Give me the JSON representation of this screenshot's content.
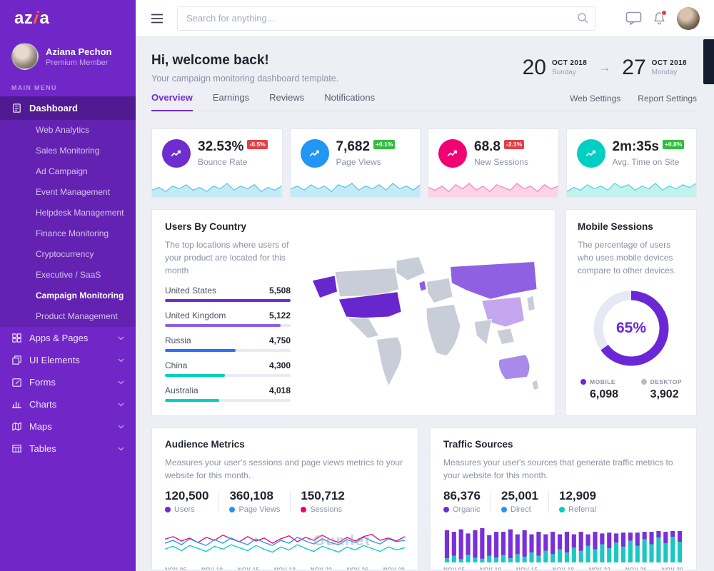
{
  "colors": {
    "purple": "#6f2dcf",
    "blue": "#2196f3",
    "pink": "#f10075",
    "teal": "#00cfc4",
    "badge_red": "#e23f49",
    "badge_green": "#2fbf3f"
  },
  "sidebar": {
    "logo_prefix": "az",
    "logo_accent": "i",
    "logo_suffix": "a",
    "user": {
      "name": "Aziana Pechon",
      "role": "Premium Member"
    },
    "section_label": "MAIN MENU",
    "dashboard_label": "Dashboard",
    "dashboard_sub": [
      "Web Analytics",
      "Sales Monitoring",
      "Ad Campaign",
      "Event Management",
      "Helpdesk Management",
      "Finance Monitoring",
      "Cryptocurrency",
      "Executive / SaaS",
      "Campaign Monitoring",
      "Product Management"
    ],
    "dashboard_sub_active": "Campaign Monitoring",
    "menu_items": [
      "Apps & Pages",
      "UI Elements",
      "Forms",
      "Charts",
      "Maps",
      "Tables"
    ]
  },
  "topbar": {
    "search_placeholder": "Search for anything..."
  },
  "header": {
    "title": "Hi, welcome back!",
    "subtitle": "Your campaign monitoring dashboard template.",
    "date_from": {
      "day": "20",
      "month": "OCT 2018",
      "weekday": "Sunday"
    },
    "date_to": {
      "day": "27",
      "month": "OCT 2018",
      "weekday": "Monday"
    },
    "links": [
      "Web Settings",
      "Report Settings"
    ]
  },
  "tabs": {
    "items": [
      "Overview",
      "Earnings",
      "Reviews",
      "Notifications"
    ],
    "active": "Overview"
  },
  "stat_cards": [
    {
      "label": "Bounce Rate",
      "value": "32.53%",
      "badge": "-0.5%",
      "badge_color": "#e23f49",
      "color": "#6f2dcf",
      "spark_color": "#58c3e8",
      "spark": [
        4,
        6,
        3,
        7,
        5,
        8,
        4,
        6,
        3,
        7,
        5,
        9,
        4,
        7,
        5,
        8,
        3,
        6,
        4,
        7
      ]
    },
    {
      "label": "Page Views",
      "value": "7,682",
      "badge": "+0.1%",
      "badge_color": "#2fbf3f",
      "color": "#2196f3",
      "spark_color": "#58c3e8",
      "spark": [
        5,
        7,
        4,
        8,
        5,
        7,
        3,
        8,
        6,
        9,
        4,
        7,
        5,
        8,
        4,
        9,
        5,
        7,
        4,
        8
      ]
    },
    {
      "label": "New Sessions",
      "value": "68.8",
      "badge": "-2.1%",
      "badge_color": "#e23f49",
      "color": "#f10075",
      "spark_color": "#f583b8",
      "spark": [
        6,
        4,
        7,
        3,
        8,
        5,
        9,
        4,
        7,
        3,
        8,
        6,
        4,
        9,
        5,
        7,
        3,
        8,
        5,
        7
      ]
    },
    {
      "label": "Avg. Time on Site",
      "value": "2m:35s",
      "badge": "+0.8%",
      "badge_color": "#2fbf3f",
      "color": "#00cfc4",
      "spark_color": "#4fd7cd",
      "spark": [
        3,
        6,
        4,
        8,
        5,
        7,
        4,
        9,
        6,
        8,
        4,
        7,
        5,
        9,
        4,
        7,
        5,
        8,
        6,
        9
      ]
    }
  ],
  "users_by_country": {
    "title": "Users By Country",
    "description": "The top locations where users of your product are located for this month",
    "countries": [
      {
        "name": "United States",
        "value": "5,508",
        "pct": 100,
        "color": "#6f2dcf"
      },
      {
        "name": "United Kingdom",
        "value": "5,122",
        "pct": 92,
        "color": "#8b5fe0"
      },
      {
        "name": "Russia",
        "value": "4,750",
        "pct": 56,
        "color": "#2a6ff7"
      },
      {
        "name": "China",
        "value": "4,300",
        "pct": 48,
        "color": "#00cfc4"
      },
      {
        "name": "Australia",
        "value": "4,018",
        "pct": 43,
        "color": "#00cfc4"
      }
    ],
    "map_colors": {
      "base": "#c9cdd8",
      "united-states": "#6727cd",
      "united-kingdom": "#8b5fe0",
      "russia": "#8f60e2",
      "china": "#c4a7ef",
      "australia": "#a98ae8"
    }
  },
  "mobile_sessions": {
    "title": "Mobile Sessions",
    "description": "The percentage of users who uses mobile devices compare to other devices.",
    "percent": "65%",
    "percent_value": 65,
    "donut_color": "#6b27d6",
    "donut_track": "#e6e9f4",
    "legend": [
      {
        "label": "MOBILE",
        "value": "6,098",
        "color": "#6b27d6"
      },
      {
        "label": "DESKTOP",
        "value": "3,902",
        "color": "#b4bac7"
      }
    ]
  },
  "audience_metrics": {
    "title": "Audience Metrics",
    "description": "Measures your user's sessions and page views metrics to your website for this month.",
    "stats": [
      {
        "value": "120,500",
        "label": "Users",
        "color": "#6f2dcf"
      },
      {
        "value": "360,108",
        "label": "Page Views",
        "color": "#2196f3"
      },
      {
        "value": "150,712",
        "label": "Sessions",
        "color": "#f10075"
      }
    ],
    "x_labels": [
      "NOV 05",
      "NOV 10",
      "NOV 15",
      "NOV 18",
      "NOV 22",
      "NOV 26",
      "NOV 30"
    ],
    "series": [
      {
        "name": "Sessions",
        "color": "#f10075",
        "values": [
          55,
          62,
          50,
          58,
          46,
          60,
          52,
          66,
          56,
          48,
          62,
          50,
          58,
          44,
          56,
          64,
          48,
          60,
          52,
          66,
          54,
          46,
          60,
          50,
          62,
          68,
          52,
          58,
          50,
          62
        ]
      },
      {
        "name": "Page Views",
        "color": "#2196f3",
        "values": [
          44,
          52,
          40,
          56,
          46,
          38,
          54,
          44,
          58,
          48,
          40,
          56,
          46,
          38,
          52,
          44,
          60,
          50,
          42,
          56,
          46,
          40,
          54,
          46,
          60,
          50,
          42,
          56,
          48,
          52
        ]
      },
      {
        "name": "Users",
        "color": "#00cfc4",
        "values": [
          28,
          36,
          24,
          38,
          30,
          22,
          36,
          28,
          40,
          32,
          24,
          38,
          28,
          20,
          34,
          26,
          40,
          30,
          22,
          36,
          28,
          20,
          34,
          26,
          38,
          30,
          22,
          34,
          26,
          32
        ]
      }
    ]
  },
  "traffic_sources": {
    "title": "Traffic Sources",
    "description": "Measures your user's sources that generate traffic metrics to your website for this month.",
    "stats": [
      {
        "value": "86,376",
        "label": "Organic",
        "color": "#6f2dcf"
      },
      {
        "value": "25,001",
        "label": "Direct",
        "color": "#2196f3"
      },
      {
        "value": "12,909",
        "label": "Referral",
        "color": "#00cfc4"
      }
    ],
    "x_labels": [
      "NOV 05",
      "NOV 10",
      "NOV 15",
      "NOV 18",
      "NOV 22",
      "NOV 26",
      "NOV 30"
    ],
    "bar_colors": {
      "purple": "#7a30d8",
      "teal": "#1cc7c0"
    },
    "bars_purple": [
      68,
      58,
      72,
      52,
      66,
      74,
      50,
      62,
      56,
      70,
      48,
      64,
      44,
      58,
      40,
      54,
      36,
      50,
      32,
      46,
      28,
      42,
      26,
      38,
      22,
      34,
      20,
      32,
      18,
      30,
      16,
      28,
      14,
      26
    ],
    "bars_teal": [
      10,
      16,
      8,
      18,
      12,
      9,
      16,
      12,
      18,
      10,
      20,
      14,
      24,
      16,
      28,
      20,
      32,
      24,
      36,
      28,
      40,
      32,
      44,
      34,
      48,
      38,
      52,
      40,
      56,
      44,
      60,
      46,
      62,
      50
    ]
  },
  "watermark": "Gumlet"
}
